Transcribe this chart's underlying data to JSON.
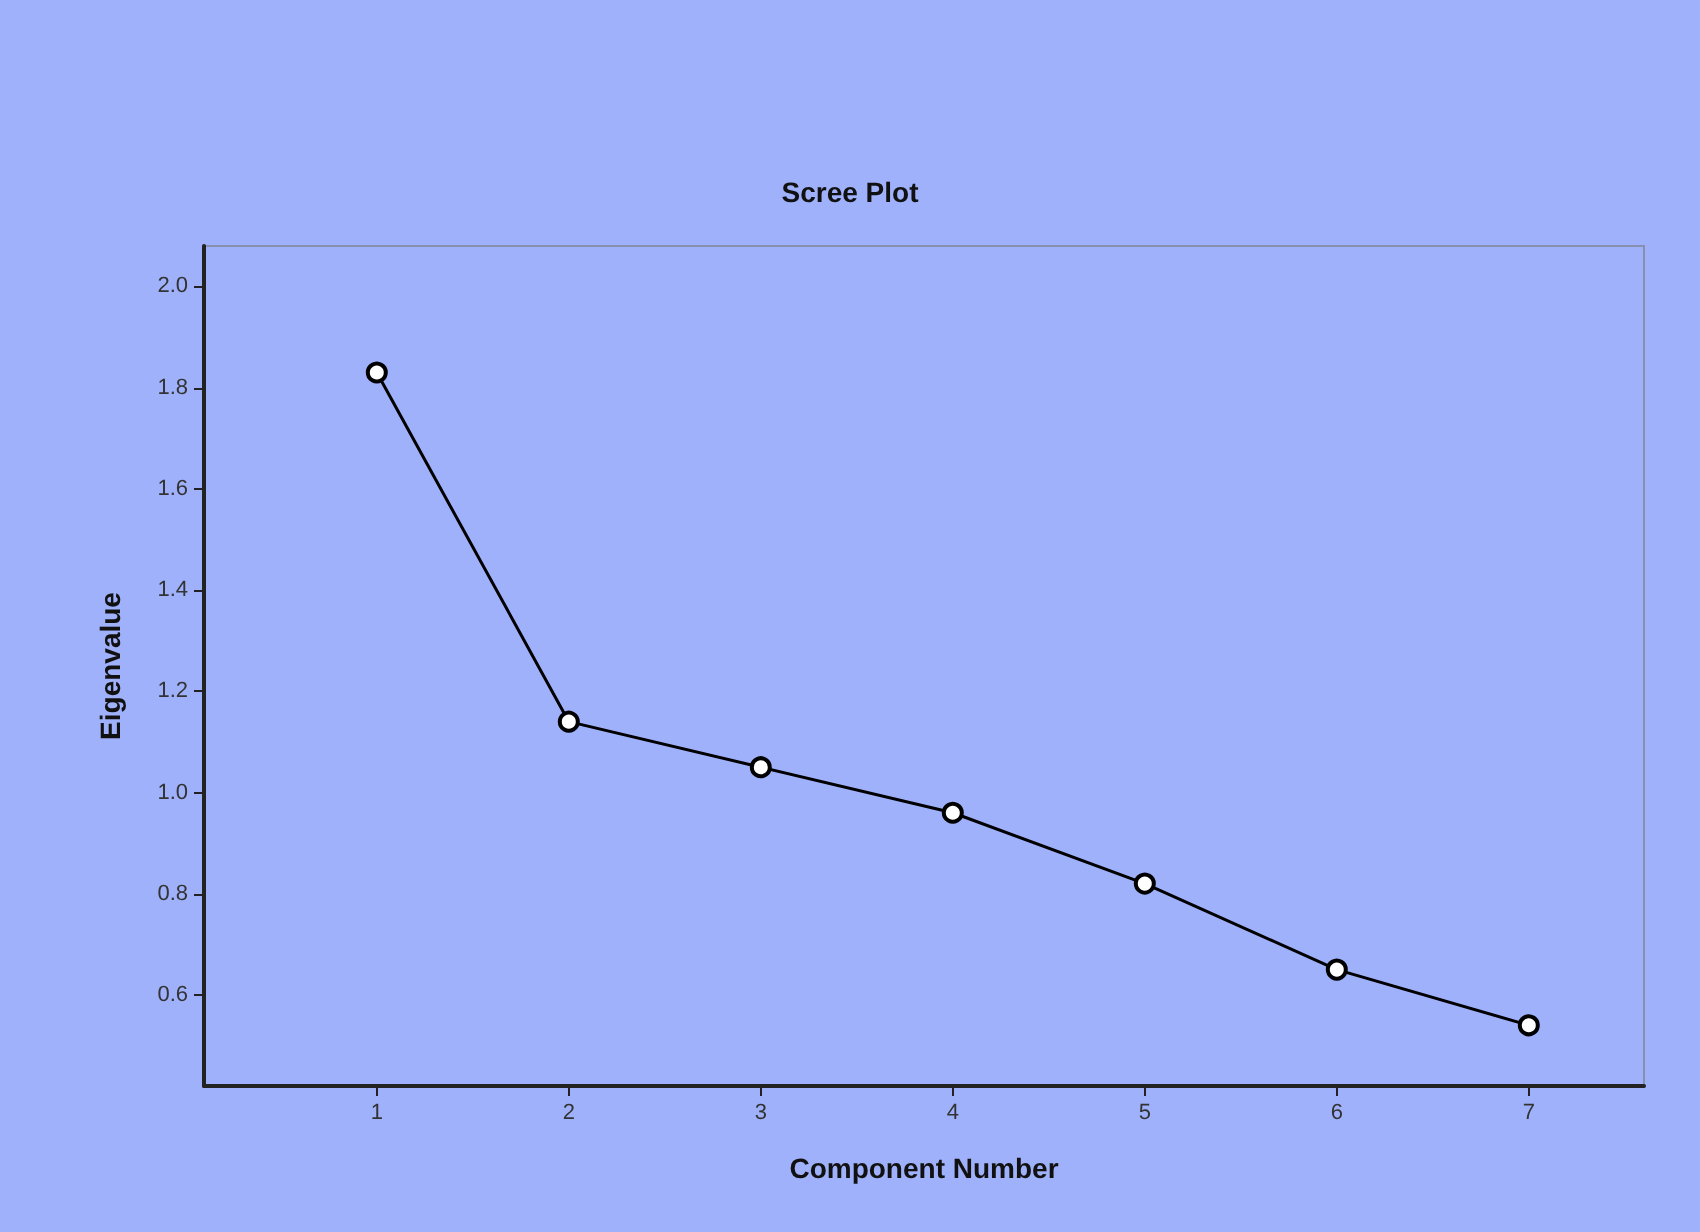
{
  "chart_data": {
    "type": "line",
    "title": "Scree Plot",
    "xlabel": "Component Number",
    "ylabel": "Eigenvalue",
    "x": [
      1,
      2,
      3,
      4,
      5,
      6,
      7
    ],
    "series": [
      {
        "color": "#000000",
        "values": [
          1.83,
          1.14,
          1.05,
          0.96,
          0.82,
          0.65,
          0.54
        ]
      }
    ],
    "xlim": [
      0.1,
      7.6
    ],
    "xticks": [
      1,
      2,
      3,
      4,
      5,
      6,
      7
    ],
    "ylim": [
      0.42,
      2.08
    ],
    "yticks": [
      0.6,
      0.8,
      {
        "value": 1,
        "label": "1.0"
      },
      1.2,
      1.4,
      1.6,
      1.8,
      {
        "value": 2,
        "label": "2.0"
      }
    ],
    "grid": false,
    "marker": "circle",
    "line_style": "solid"
  }
}
